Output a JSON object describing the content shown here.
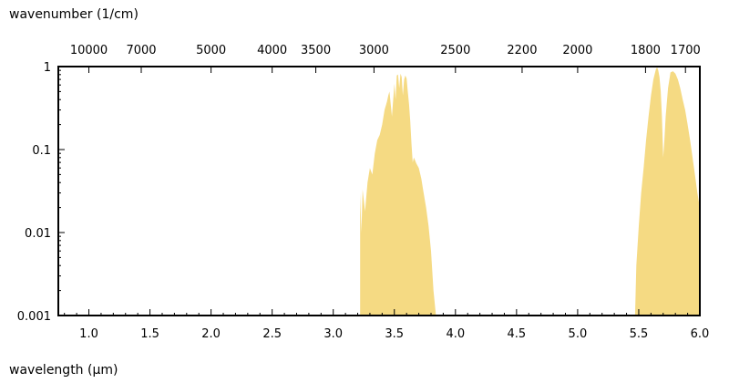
{
  "chart_data": {
    "type": "area",
    "top_axis_title": "wavenumber (1/cm)",
    "bottom_axis_title": "wavelength (µm)",
    "bottom_axis": {
      "unit": "µm",
      "range": [
        0.75,
        6.0
      ],
      "ticks": [
        1.0,
        1.5,
        2.0,
        2.5,
        3.0,
        3.5,
        4.0,
        4.5,
        5.0,
        5.5,
        6.0
      ],
      "tick_labels": [
        "1.0",
        "1.5",
        "2.0",
        "2.5",
        "3.0",
        "3.5",
        "4.0",
        "4.5",
        "5.0",
        "5.5",
        "6.0"
      ]
    },
    "top_axis": {
      "unit": "1/cm",
      "ticks": [
        10000,
        7000,
        5000,
        4000,
        3500,
        3000,
        2500,
        2200,
        2000,
        1800,
        1700
      ],
      "tick_labels": [
        "10000",
        "7000",
        "5000",
        "4000",
        "3500",
        "3000",
        "2500",
        "2200",
        "2000",
        "1800",
        "1700"
      ]
    },
    "y_axis": {
      "scale": "log",
      "range": [
        0.001,
        1
      ],
      "ticks": [
        0.001,
        0.01,
        0.1,
        1
      ],
      "tick_labels": [
        "0.001",
        "0.01",
        "0.1",
        "1"
      ]
    },
    "grid": false,
    "fill_color": "#f5da83",
    "series": [
      {
        "x": [
          3.22,
          3.23,
          3.24,
          3.26,
          3.28,
          3.3,
          3.32,
          3.34,
          3.36,
          3.38,
          3.4,
          3.42,
          3.44,
          3.45,
          3.46,
          3.48,
          3.5,
          3.51,
          3.52,
          3.53,
          3.54,
          3.55,
          3.56,
          3.57,
          3.58,
          3.59,
          3.6,
          3.61,
          3.62,
          3.63,
          3.64,
          3.65,
          3.66,
          3.68,
          3.7,
          3.72,
          3.74,
          3.76,
          3.78,
          3.8,
          3.82,
          3.84
        ],
        "y": [
          0.03,
          0.01,
          0.033,
          0.018,
          0.04,
          0.06,
          0.05,
          0.09,
          0.13,
          0.15,
          0.2,
          0.3,
          0.38,
          0.45,
          0.5,
          0.25,
          0.62,
          0.4,
          0.78,
          0.8,
          0.55,
          0.82,
          0.75,
          0.45,
          0.7,
          0.78,
          0.72,
          0.5,
          0.35,
          0.22,
          0.12,
          0.07,
          0.08,
          0.068,
          0.06,
          0.045,
          0.03,
          0.02,
          0.012,
          0.006,
          0.002,
          0.001
        ]
      },
      {
        "x": [
          5.47,
          5.48,
          5.5,
          5.52,
          5.54,
          5.56,
          5.58,
          5.6,
          5.62,
          5.64,
          5.65,
          5.66,
          5.67,
          5.68,
          5.69,
          5.7,
          5.71,
          5.72,
          5.74,
          5.76,
          5.78,
          5.8,
          5.82,
          5.84,
          5.86,
          5.88,
          5.9,
          5.92,
          5.94,
          5.96,
          5.98,
          6.0
        ],
        "y": [
          0.001,
          0.004,
          0.012,
          0.03,
          0.06,
          0.13,
          0.25,
          0.45,
          0.7,
          0.92,
          0.98,
          0.9,
          0.75,
          0.5,
          0.25,
          0.08,
          0.13,
          0.25,
          0.55,
          0.85,
          0.88,
          0.82,
          0.7,
          0.55,
          0.4,
          0.3,
          0.2,
          0.13,
          0.08,
          0.05,
          0.03,
          0.02
        ]
      }
    ]
  }
}
